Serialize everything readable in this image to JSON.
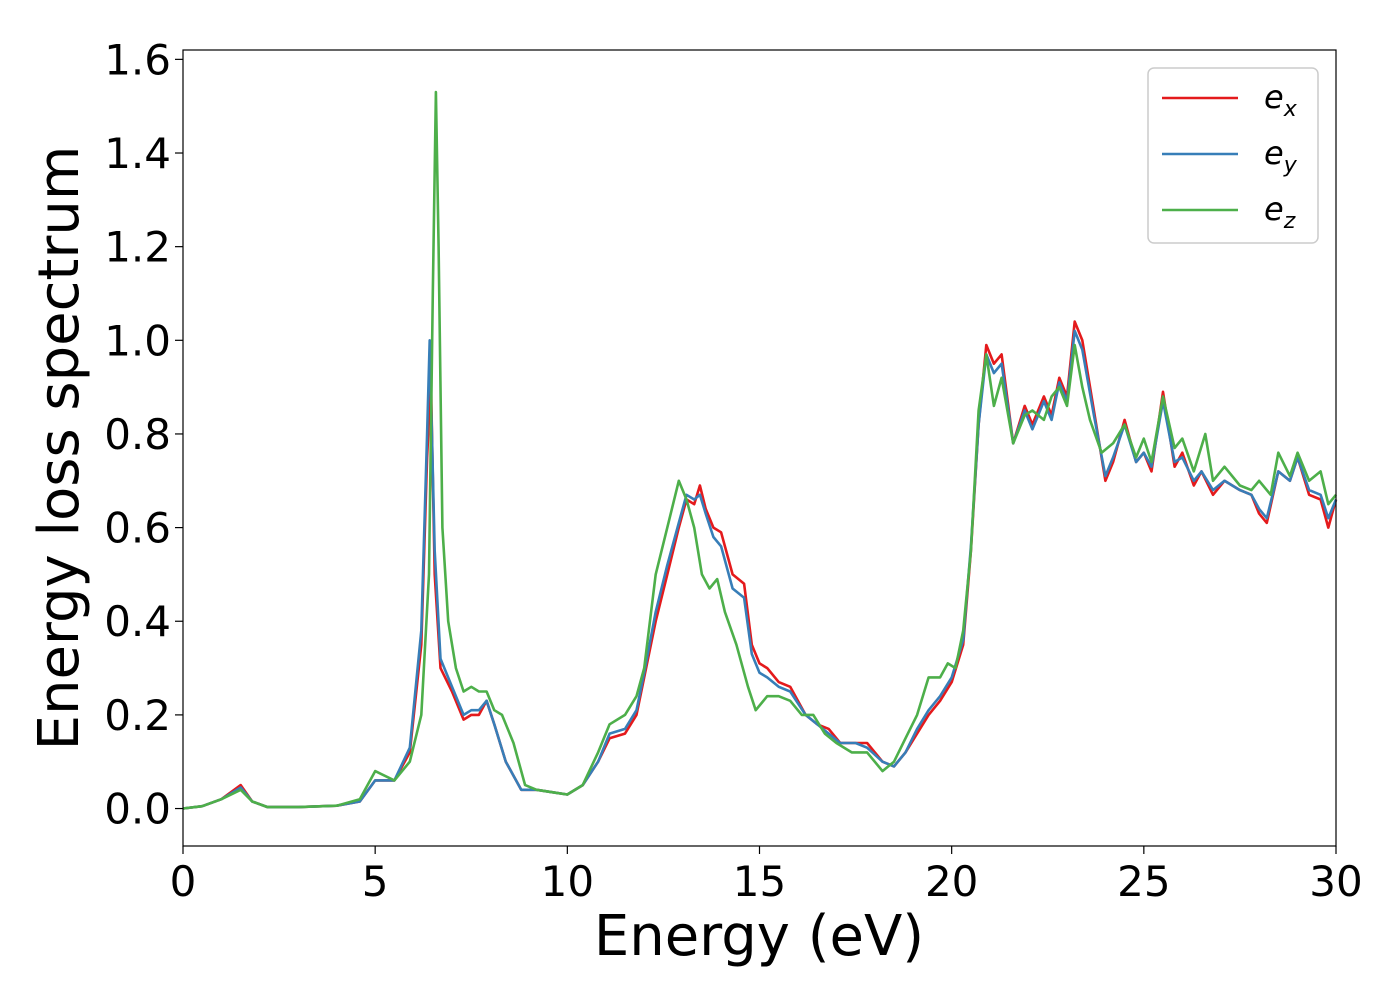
{
  "chart_data": {
    "type": "line",
    "xlabel": "Energy (eV)",
    "ylabel": "Energy loss spectrum",
    "xlim": [
      0,
      30
    ],
    "ylim": [
      -0.08,
      1.62
    ],
    "xticks": [
      0,
      5,
      10,
      15,
      20,
      25,
      30
    ],
    "xtick_labels": [
      "0",
      "5",
      "10",
      "15",
      "20",
      "25",
      "30"
    ],
    "yticks": [
      0.0,
      0.2,
      0.4,
      0.6,
      0.8,
      1.0,
      1.2,
      1.4,
      1.6
    ],
    "ytick_labels": [
      "0.0",
      "0.2",
      "0.4",
      "0.6",
      "0.8",
      "1.0",
      "1.2",
      "1.4",
      "1.6"
    ],
    "grid": false,
    "legend_position": "top-right",
    "series": [
      {
        "name": "e",
        "subscript": "x",
        "color": "#e41a1c",
        "points": [
          [
            0,
            0
          ],
          [
            0.5,
            0.005
          ],
          [
            1.0,
            0.02
          ],
          [
            1.5,
            0.05
          ],
          [
            1.8,
            0.015
          ],
          [
            2.2,
            0.003
          ],
          [
            3,
            0.003
          ],
          [
            4,
            0.006
          ],
          [
            4.6,
            0.015
          ],
          [
            5.0,
            0.06
          ],
          [
            5.5,
            0.06
          ],
          [
            5.9,
            0.12
          ],
          [
            6.2,
            0.35
          ],
          [
            6.35,
            0.75
          ],
          [
            6.45,
            0.92
          ],
          [
            6.55,
            0.5
          ],
          [
            6.7,
            0.3
          ],
          [
            7.0,
            0.25
          ],
          [
            7.3,
            0.19
          ],
          [
            7.5,
            0.2
          ],
          [
            7.7,
            0.2
          ],
          [
            7.9,
            0.23
          ],
          [
            8.1,
            0.18
          ],
          [
            8.4,
            0.1
          ],
          [
            8.8,
            0.04
          ],
          [
            9.2,
            0.04
          ],
          [
            9.6,
            0.035
          ],
          [
            10.0,
            0.03
          ],
          [
            10.4,
            0.05
          ],
          [
            10.8,
            0.1
          ],
          [
            11.1,
            0.15
          ],
          [
            11.5,
            0.16
          ],
          [
            11.8,
            0.2
          ],
          [
            12.0,
            0.28
          ],
          [
            12.3,
            0.4
          ],
          [
            12.6,
            0.5
          ],
          [
            12.9,
            0.6
          ],
          [
            13.1,
            0.66
          ],
          [
            13.3,
            0.65
          ],
          [
            13.45,
            0.69
          ],
          [
            13.6,
            0.64
          ],
          [
            13.8,
            0.6
          ],
          [
            14.0,
            0.59
          ],
          [
            14.3,
            0.5
          ],
          [
            14.6,
            0.48
          ],
          [
            14.8,
            0.35
          ],
          [
            15.0,
            0.31
          ],
          [
            15.2,
            0.3
          ],
          [
            15.5,
            0.27
          ],
          [
            15.8,
            0.26
          ],
          [
            16.2,
            0.2
          ],
          [
            16.5,
            0.18
          ],
          [
            16.8,
            0.17
          ],
          [
            17.1,
            0.14
          ],
          [
            17.5,
            0.14
          ],
          [
            17.8,
            0.14
          ],
          [
            18.2,
            0.1
          ],
          [
            18.5,
            0.09
          ],
          [
            18.8,
            0.12
          ],
          [
            19.1,
            0.16
          ],
          [
            19.4,
            0.2
          ],
          [
            19.7,
            0.23
          ],
          [
            20.0,
            0.27
          ],
          [
            20.3,
            0.35
          ],
          [
            20.5,
            0.55
          ],
          [
            20.7,
            0.82
          ],
          [
            20.9,
            0.99
          ],
          [
            21.1,
            0.95
          ],
          [
            21.3,
            0.97
          ],
          [
            21.6,
            0.78
          ],
          [
            21.9,
            0.86
          ],
          [
            22.1,
            0.82
          ],
          [
            22.4,
            0.88
          ],
          [
            22.6,
            0.84
          ],
          [
            22.8,
            0.92
          ],
          [
            23.0,
            0.88
          ],
          [
            23.2,
            1.04
          ],
          [
            23.4,
            1.0
          ],
          [
            23.7,
            0.85
          ],
          [
            24.0,
            0.7
          ],
          [
            24.2,
            0.74
          ],
          [
            24.5,
            0.83
          ],
          [
            24.8,
            0.74
          ],
          [
            25.0,
            0.76
          ],
          [
            25.2,
            0.72
          ],
          [
            25.5,
            0.89
          ],
          [
            25.8,
            0.73
          ],
          [
            26.0,
            0.76
          ],
          [
            26.3,
            0.69
          ],
          [
            26.5,
            0.72
          ],
          [
            26.8,
            0.67
          ],
          [
            27.1,
            0.7
          ],
          [
            27.5,
            0.68
          ],
          [
            27.8,
            0.67
          ],
          [
            28.0,
            0.63
          ],
          [
            28.2,
            0.61
          ],
          [
            28.5,
            0.72
          ],
          [
            28.8,
            0.7
          ],
          [
            29.0,
            0.75
          ],
          [
            29.3,
            0.67
          ],
          [
            29.6,
            0.66
          ],
          [
            29.8,
            0.6
          ],
          [
            30.0,
            0.66
          ]
        ]
      },
      {
        "name": "e",
        "subscript": "y",
        "color": "#377eb8",
        "points": [
          [
            0,
            0
          ],
          [
            0.5,
            0.005
          ],
          [
            1.0,
            0.02
          ],
          [
            1.5,
            0.045
          ],
          [
            1.8,
            0.015
          ],
          [
            2.2,
            0.003
          ],
          [
            3,
            0.003
          ],
          [
            4,
            0.006
          ],
          [
            4.6,
            0.015
          ],
          [
            5.0,
            0.06
          ],
          [
            5.5,
            0.06
          ],
          [
            5.9,
            0.13
          ],
          [
            6.2,
            0.38
          ],
          [
            6.35,
            0.8
          ],
          [
            6.42,
            1.0
          ],
          [
            6.55,
            0.55
          ],
          [
            6.7,
            0.32
          ],
          [
            7.0,
            0.26
          ],
          [
            7.3,
            0.2
          ],
          [
            7.5,
            0.21
          ],
          [
            7.7,
            0.21
          ],
          [
            7.9,
            0.23
          ],
          [
            8.1,
            0.18
          ],
          [
            8.4,
            0.1
          ],
          [
            8.8,
            0.04
          ],
          [
            9.2,
            0.04
          ],
          [
            9.6,
            0.035
          ],
          [
            10.0,
            0.03
          ],
          [
            10.4,
            0.05
          ],
          [
            10.8,
            0.1
          ],
          [
            11.1,
            0.16
          ],
          [
            11.5,
            0.17
          ],
          [
            11.8,
            0.21
          ],
          [
            12.0,
            0.29
          ],
          [
            12.3,
            0.42
          ],
          [
            12.6,
            0.52
          ],
          [
            12.9,
            0.61
          ],
          [
            13.1,
            0.67
          ],
          [
            13.3,
            0.66
          ],
          [
            13.45,
            0.67
          ],
          [
            13.6,
            0.63
          ],
          [
            13.8,
            0.58
          ],
          [
            14.0,
            0.56
          ],
          [
            14.3,
            0.47
          ],
          [
            14.6,
            0.45
          ],
          [
            14.8,
            0.33
          ],
          [
            15.0,
            0.29
          ],
          [
            15.2,
            0.28
          ],
          [
            15.5,
            0.26
          ],
          [
            15.8,
            0.25
          ],
          [
            16.2,
            0.2
          ],
          [
            16.5,
            0.18
          ],
          [
            16.8,
            0.16
          ],
          [
            17.1,
            0.14
          ],
          [
            17.5,
            0.14
          ],
          [
            17.8,
            0.13
          ],
          [
            18.2,
            0.1
          ],
          [
            18.5,
            0.09
          ],
          [
            18.8,
            0.12
          ],
          [
            19.1,
            0.17
          ],
          [
            19.4,
            0.21
          ],
          [
            19.7,
            0.24
          ],
          [
            20.0,
            0.28
          ],
          [
            20.3,
            0.36
          ],
          [
            20.5,
            0.56
          ],
          [
            20.7,
            0.82
          ],
          [
            20.9,
            0.97
          ],
          [
            21.1,
            0.93
          ],
          [
            21.3,
            0.95
          ],
          [
            21.6,
            0.78
          ],
          [
            21.9,
            0.85
          ],
          [
            22.1,
            0.81
          ],
          [
            22.4,
            0.87
          ],
          [
            22.6,
            0.83
          ],
          [
            22.8,
            0.91
          ],
          [
            23.0,
            0.87
          ],
          [
            23.2,
            1.02
          ],
          [
            23.4,
            0.98
          ],
          [
            23.7,
            0.84
          ],
          [
            24.0,
            0.71
          ],
          [
            24.2,
            0.75
          ],
          [
            24.5,
            0.82
          ],
          [
            24.8,
            0.74
          ],
          [
            25.0,
            0.76
          ],
          [
            25.2,
            0.73
          ],
          [
            25.5,
            0.87
          ],
          [
            25.8,
            0.74
          ],
          [
            26.0,
            0.75
          ],
          [
            26.3,
            0.7
          ],
          [
            26.5,
            0.72
          ],
          [
            26.8,
            0.68
          ],
          [
            27.1,
            0.7
          ],
          [
            27.5,
            0.68
          ],
          [
            27.8,
            0.67
          ],
          [
            28.0,
            0.64
          ],
          [
            28.2,
            0.62
          ],
          [
            28.5,
            0.72
          ],
          [
            28.8,
            0.7
          ],
          [
            29.0,
            0.75
          ],
          [
            29.3,
            0.68
          ],
          [
            29.6,
            0.67
          ],
          [
            29.8,
            0.62
          ],
          [
            30.0,
            0.66
          ]
        ]
      },
      {
        "name": "e",
        "subscript": "z",
        "color": "#4daf4a",
        "points": [
          [
            0,
            0
          ],
          [
            0.5,
            0.005
          ],
          [
            1.0,
            0.02
          ],
          [
            1.5,
            0.04
          ],
          [
            1.8,
            0.015
          ],
          [
            2.2,
            0.003
          ],
          [
            3,
            0.003
          ],
          [
            4,
            0.006
          ],
          [
            4.6,
            0.02
          ],
          [
            5.0,
            0.08
          ],
          [
            5.5,
            0.06
          ],
          [
            5.9,
            0.1
          ],
          [
            6.2,
            0.2
          ],
          [
            6.4,
            0.5
          ],
          [
            6.5,
            1.1
          ],
          [
            6.58,
            1.53
          ],
          [
            6.65,
            1.2
          ],
          [
            6.75,
            0.6
          ],
          [
            6.9,
            0.4
          ],
          [
            7.1,
            0.3
          ],
          [
            7.3,
            0.25
          ],
          [
            7.5,
            0.26
          ],
          [
            7.7,
            0.25
          ],
          [
            7.9,
            0.25
          ],
          [
            8.1,
            0.21
          ],
          [
            8.3,
            0.2
          ],
          [
            8.6,
            0.14
          ],
          [
            8.9,
            0.05
          ],
          [
            9.2,
            0.04
          ],
          [
            9.6,
            0.035
          ],
          [
            10.0,
            0.03
          ],
          [
            10.4,
            0.05
          ],
          [
            10.8,
            0.12
          ],
          [
            11.1,
            0.18
          ],
          [
            11.5,
            0.2
          ],
          [
            11.8,
            0.24
          ],
          [
            12.0,
            0.3
          ],
          [
            12.3,
            0.5
          ],
          [
            12.6,
            0.6
          ],
          [
            12.9,
            0.7
          ],
          [
            13.1,
            0.66
          ],
          [
            13.3,
            0.6
          ],
          [
            13.5,
            0.5
          ],
          [
            13.7,
            0.47
          ],
          [
            13.9,
            0.49
          ],
          [
            14.1,
            0.42
          ],
          [
            14.4,
            0.35
          ],
          [
            14.7,
            0.26
          ],
          [
            14.9,
            0.21
          ],
          [
            15.2,
            0.24
          ],
          [
            15.5,
            0.24
          ],
          [
            15.8,
            0.23
          ],
          [
            16.1,
            0.2
          ],
          [
            16.4,
            0.2
          ],
          [
            16.7,
            0.16
          ],
          [
            17.0,
            0.14
          ],
          [
            17.4,
            0.12
          ],
          [
            17.8,
            0.12
          ],
          [
            18.2,
            0.08
          ],
          [
            18.5,
            0.1
          ],
          [
            18.8,
            0.15
          ],
          [
            19.1,
            0.2
          ],
          [
            19.4,
            0.28
          ],
          [
            19.7,
            0.28
          ],
          [
            19.9,
            0.31
          ],
          [
            20.1,
            0.3
          ],
          [
            20.3,
            0.38
          ],
          [
            20.5,
            0.55
          ],
          [
            20.7,
            0.85
          ],
          [
            20.9,
            0.97
          ],
          [
            21.1,
            0.86
          ],
          [
            21.3,
            0.92
          ],
          [
            21.6,
            0.78
          ],
          [
            21.9,
            0.84
          ],
          [
            22.1,
            0.85
          ],
          [
            22.4,
            0.83
          ],
          [
            22.6,
            0.88
          ],
          [
            22.8,
            0.9
          ],
          [
            23.0,
            0.86
          ],
          [
            23.2,
            0.99
          ],
          [
            23.4,
            0.9
          ],
          [
            23.6,
            0.83
          ],
          [
            23.9,
            0.76
          ],
          [
            24.2,
            0.78
          ],
          [
            24.5,
            0.82
          ],
          [
            24.8,
            0.75
          ],
          [
            25.0,
            0.79
          ],
          [
            25.2,
            0.74
          ],
          [
            25.5,
            0.88
          ],
          [
            25.8,
            0.77
          ],
          [
            26.0,
            0.79
          ],
          [
            26.3,
            0.72
          ],
          [
            26.6,
            0.8
          ],
          [
            26.8,
            0.7
          ],
          [
            27.1,
            0.73
          ],
          [
            27.5,
            0.69
          ],
          [
            27.8,
            0.68
          ],
          [
            28.0,
            0.7
          ],
          [
            28.3,
            0.67
          ],
          [
            28.5,
            0.76
          ],
          [
            28.8,
            0.71
          ],
          [
            29.0,
            0.76
          ],
          [
            29.3,
            0.7
          ],
          [
            29.6,
            0.72
          ],
          [
            29.8,
            0.65
          ],
          [
            30.0,
            0.67
          ]
        ]
      }
    ]
  }
}
